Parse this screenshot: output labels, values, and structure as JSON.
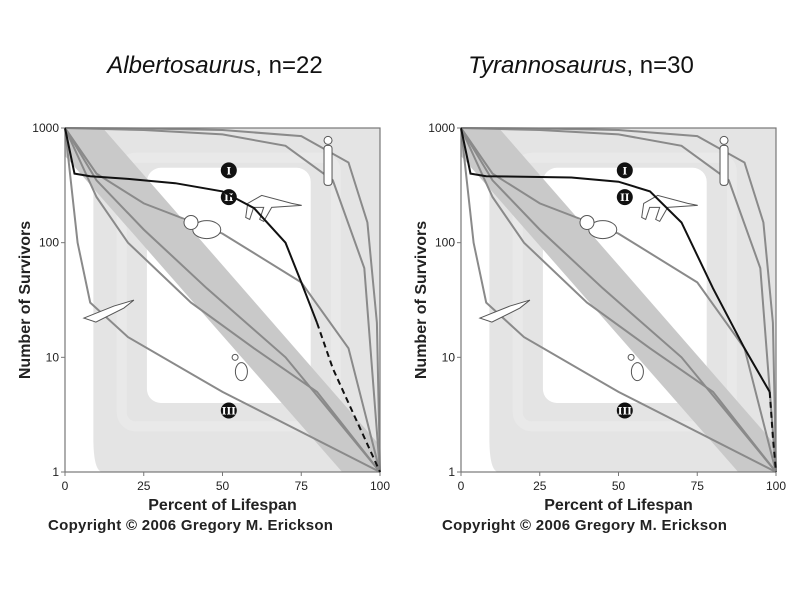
{
  "chart_data": [
    {
      "type": "line",
      "title_species": "Albertosaurus",
      "title_rest": ", n=22",
      "xlabel": "Percent  of  Lifespan",
      "ylabel": "Number  of  Survivors",
      "x_ticks": [
        "0",
        "25",
        "50",
        "75",
        "100"
      ],
      "y_ticks": [
        "1",
        "10",
        "100",
        "1000"
      ],
      "xlim": [
        0,
        100
      ],
      "ylim": [
        1,
        1000
      ],
      "y_scale": "log",
      "zones": [
        "I",
        "II",
        "III"
      ],
      "copyright": "Copyright © 2006 Gregory M. Erickson",
      "series": [
        {
          "x": [
            0,
            3,
            8,
            20,
            35,
            50,
            60,
            70,
            75,
            80
          ],
          "y": [
            1000,
            400,
            380,
            360,
            330,
            280,
            200,
            100,
            45,
            20
          ]
        },
        {
          "x": [
            80,
            85,
            90,
            95,
            100
          ],
          "y": [
            20,
            8,
            4,
            2,
            1
          ]
        }
      ]
    },
    {
      "type": "line",
      "title_species": "Tyrannosaurus",
      "title_rest": ", n=30",
      "xlabel": "Percent  of  Lifespan",
      "ylabel": "Number  of  Survivors",
      "x_ticks": [
        "0",
        "25",
        "50",
        "75",
        "100"
      ],
      "y_ticks": [
        "1",
        "10",
        "100",
        "1000"
      ],
      "xlim": [
        0,
        100
      ],
      "ylim": [
        1,
        1000
      ],
      "y_scale": "log",
      "zones": [
        "I",
        "II",
        "III"
      ],
      "copyright": "Copyright © 2006 Gregory M. Erickson",
      "series": [
        {
          "x": [
            0,
            3,
            8,
            20,
            35,
            50,
            60,
            70,
            80,
            90,
            98
          ],
          "y": [
            1000,
            400,
            380,
            375,
            370,
            340,
            280,
            150,
            40,
            12,
            5
          ]
        },
        {
          "x": [
            98,
            99,
            100
          ],
          "y": [
            5,
            2,
            1
          ]
        }
      ]
    }
  ]
}
